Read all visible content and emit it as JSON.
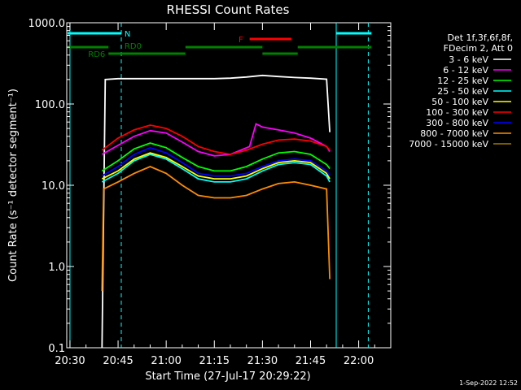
{
  "chart_data": {
    "type": "line",
    "title": "RHESSI Count Rates",
    "xlabel": "Start Time (27-Jul-17 20:29:22)",
    "ylabel": "Count Rate (s⁻¹ detector segment⁻¹)",
    "yscale": "log",
    "ylim": [
      0.1,
      1000.0
    ],
    "xlim": [
      "20:29",
      "22:10"
    ],
    "grid": false,
    "x_ticks": [
      "20:30",
      "20:45",
      "21:00",
      "21:15",
      "21:30",
      "21:45",
      "22:00"
    ],
    "y_ticks": [
      "0.1",
      "1.0",
      "10.0",
      "100.0",
      "1000.0"
    ],
    "legend_placement": "right, outside plot",
    "legend_header": [
      "Det 1f,3f,6f,8f,",
      "FDecim 2, Att 0"
    ],
    "series": [
      {
        "name": "3 - 6 keV",
        "color": "#ffffff",
        "x": [
          "20:40",
          "20:41",
          "20:45",
          "20:50",
          "20:55",
          "21:00",
          "21:05",
          "21:10",
          "21:15",
          "21:20",
          "21:25",
          "21:30",
          "21:35",
          "21:40",
          "21:45",
          "21:50",
          "21:51"
        ],
        "y": [
          0.0,
          200,
          205,
          205,
          205,
          205,
          205,
          205,
          205,
          208,
          215,
          225,
          218,
          212,
          208,
          202,
          45
        ]
      },
      {
        "name": "6 - 12 keV",
        "color": "#ff00ff",
        "x": [
          "20:40",
          "20:45",
          "20:50",
          "20:55",
          "21:00",
          "21:05",
          "21:10",
          "21:15",
          "21:20",
          "21:26",
          "21:28",
          "21:30",
          "21:35",
          "21:40",
          "21:45",
          "21:50",
          "21:51"
        ],
        "y": [
          24,
          31,
          40,
          47,
          44,
          34,
          26,
          23,
          24,
          30,
          57,
          52,
          48,
          44,
          38,
          30,
          26
        ]
      },
      {
        "name": "12 - 25 keV",
        "color": "#00ff00",
        "x": [
          "20:40",
          "20:45",
          "20:50",
          "20:55",
          "21:00",
          "21:05",
          "21:10",
          "21:15",
          "21:20",
          "21:25",
          "21:30",
          "21:35",
          "21:40",
          "21:45",
          "21:50",
          "21:51"
        ],
        "y": [
          15,
          20,
          28,
          33,
          29,
          22,
          17,
          15,
          15,
          17,
          21,
          25,
          26,
          24,
          18,
          16
        ]
      },
      {
        "name": "25 - 50 keV",
        "color": "#00ffff",
        "x": [
          "20:40",
          "20:45",
          "20:50",
          "20:55",
          "21:00",
          "21:05",
          "21:10",
          "21:15",
          "21:20",
          "21:25",
          "21:30",
          "21:35",
          "21:40",
          "21:45",
          "21:50",
          "21:51"
        ],
        "y": [
          11,
          14,
          20,
          24,
          21,
          16,
          12,
          11,
          11,
          12,
          15,
          18,
          19,
          18,
          13,
          11
        ]
      },
      {
        "name": "50 - 100 keV",
        "color": "#ffff00",
        "x": [
          "20:40",
          "20:45",
          "20:50",
          "20:55",
          "21:00",
          "21:05",
          "21:10",
          "21:15",
          "21:20",
          "21:25",
          "21:30",
          "21:35",
          "21:40",
          "21:45",
          "21:50",
          "21:51"
        ],
        "y": [
          12,
          15,
          21,
          25,
          22,
          17,
          13,
          12,
          12,
          13,
          16,
          19,
          20,
          19,
          14,
          12
        ]
      },
      {
        "name": "100 - 300 keV",
        "color": "#ff0000",
        "x": [
          "20:40",
          "20:45",
          "20:50",
          "20:55",
          "21:00",
          "21:05",
          "21:10",
          "21:15",
          "21:20",
          "21:25",
          "21:30",
          "21:35",
          "21:40",
          "21:45",
          "21:50",
          "21:51"
        ],
        "y": [
          27,
          38,
          48,
          55,
          50,
          40,
          30,
          26,
          24,
          27,
          32,
          36,
          37,
          35,
          30,
          27
        ]
      },
      {
        "name": "300 - 800 keV",
        "color": "#0000ff",
        "x": [
          "20:40",
          "20:45",
          "20:50",
          "20:55",
          "21:00",
          "21:05",
          "21:10",
          "21:15",
          "21:20",
          "21:25",
          "21:30",
          "21:35",
          "21:40",
          "21:45",
          "21:50",
          "21:51"
        ],
        "y": [
          13,
          17,
          24,
          29,
          25,
          19,
          14,
          13,
          13,
          14,
          17,
          20,
          21,
          20,
          15,
          13
        ]
      },
      {
        "name": "800 - 7000 keV",
        "color": "#ff8c00",
        "x": [
          "20:40",
          "20:40.5",
          "20:45",
          "20:50",
          "20:55",
          "21:00",
          "21:05",
          "21:10",
          "21:15",
          "21:20",
          "21:25",
          "21:30",
          "21:35",
          "21:40",
          "21:45",
          "21:50",
          "21:51"
        ],
        "y": [
          0.5,
          9,
          11,
          14,
          17,
          14,
          10,
          7.5,
          7,
          7,
          7.5,
          9,
          10.5,
          11,
          10,
          9,
          0.7
        ]
      },
      {
        "name": "7000 - 15000 keV",
        "color": "#a07800",
        "x": [],
        "y": []
      }
    ],
    "annotations": {
      "N": {
        "label": "N",
        "color": "#00ffff"
      },
      "F": {
        "label": "F",
        "color": "#ff0000"
      },
      "RD6": {
        "label": "RD6",
        "color": "#008000"
      },
      "RD0": {
        "label": "RD0",
        "color": "#008000"
      }
    },
    "segments": {
      "N": [
        [
          "20:29",
          "20:46"
        ],
        [
          "21:53",
          "22:04"
        ]
      ],
      "F": [
        [
          "21:26",
          "21:39"
        ]
      ],
      "green_upper": [
        [
          "20:29",
          "20:42"
        ],
        [
          "21:06",
          "21:30"
        ],
        [
          "21:41",
          "22:04"
        ]
      ],
      "green_lower": [
        [
          "20:42",
          "21:06"
        ],
        [
          "21:30",
          "21:41"
        ]
      ]
    },
    "vertical_markers": {
      "solid_cyan": [
        "20:30",
        "21:53"
      ],
      "dashed_cyan": [
        "20:46",
        "22:03"
      ]
    }
  },
  "footer": {
    "timestamp": "1-Sep-2022 12:52"
  }
}
